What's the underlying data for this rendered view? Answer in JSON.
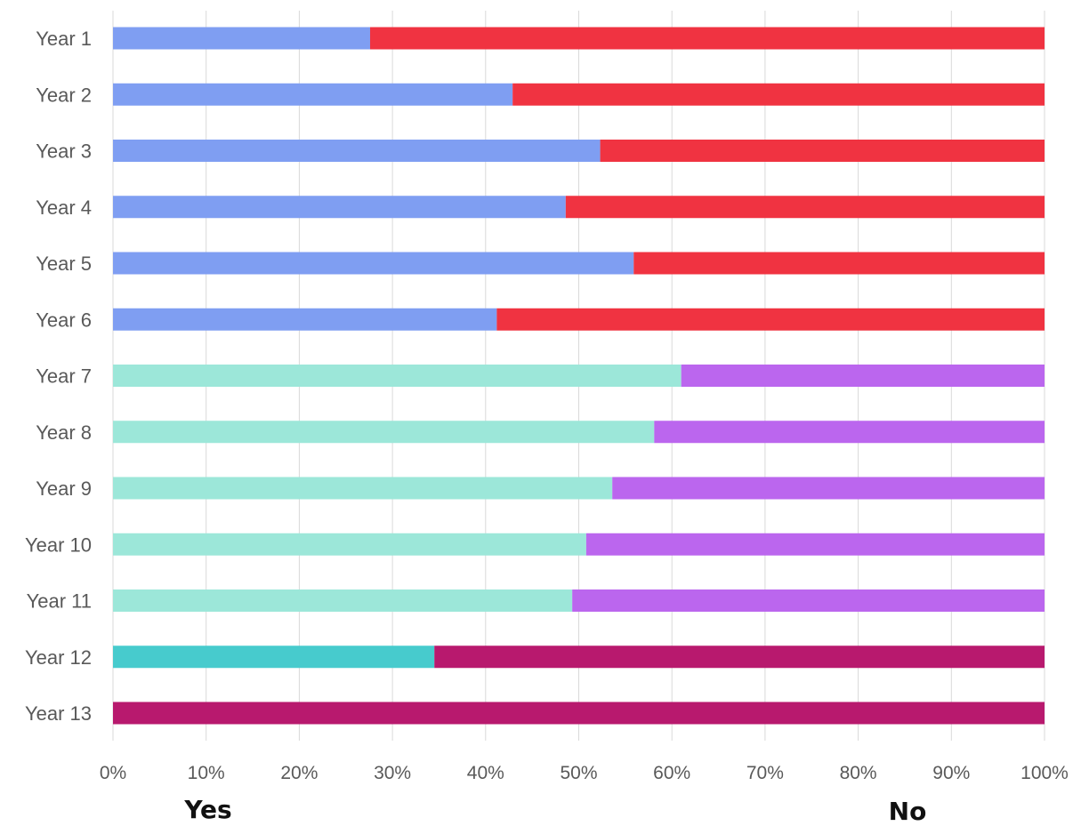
{
  "chart_data": {
    "type": "bar",
    "orientation": "horizontal",
    "stacked": "percent",
    "categories": [
      "Year 1",
      "Year 2",
      "Year 3",
      "Year 4",
      "Year 5",
      "Year 6",
      "Year 7",
      "Year 8",
      "Year 9",
      "Year 10",
      "Year 11",
      "Year 12",
      "Year 13"
    ],
    "series": [
      {
        "name": "Yes",
        "values": [
          27.6,
          42.9,
          52.3,
          48.6,
          55.9,
          41.2,
          61.0,
          58.1,
          53.6,
          50.8,
          49.3,
          34.5,
          0
        ]
      },
      {
        "name": "No",
        "values": [
          72.4,
          57.1,
          47.7,
          51.4,
          44.1,
          58.8,
          39.0,
          41.9,
          46.4,
          49.2,
          50.7,
          65.5,
          100
        ]
      }
    ],
    "group_colors": [
      {
        "from": 0,
        "to": 5,
        "yes": "#7f9ef2",
        "no": "#f03341"
      },
      {
        "from": 6,
        "to": 10,
        "yes": "#9ce7d9",
        "no": "#bb66ee"
      },
      {
        "from": 11,
        "to": 12,
        "yes": "#47cbcd",
        "no": "#b8196e"
      }
    ],
    "x_ticks": [
      "0%",
      "10%",
      "20%",
      "30%",
      "40%",
      "50%",
      "60%",
      "70%",
      "80%",
      "90%",
      "100%"
    ],
    "xlim": [
      0,
      100
    ],
    "grid": true,
    "legend_labels": {
      "yes": "Yes",
      "no": "No"
    }
  }
}
